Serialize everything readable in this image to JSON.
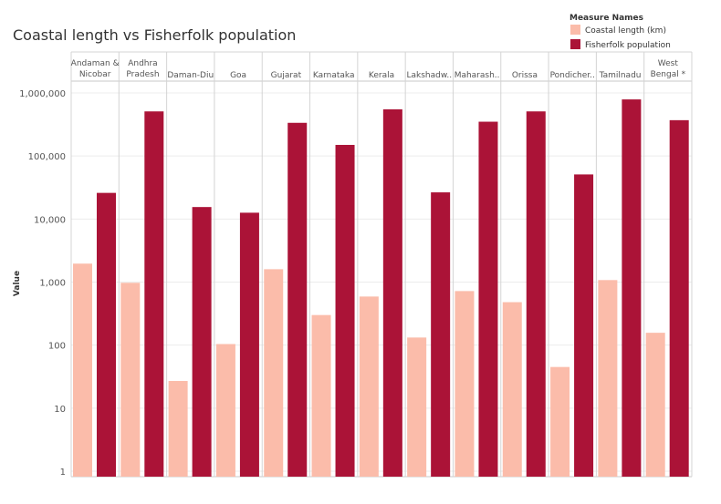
{
  "chart_data": {
    "type": "bar",
    "title": "Coastal length vs Fisherfolk population",
    "ylabel": "Value",
    "yscale": "log",
    "ylim": [
      1,
      1000000
    ],
    "yticks": [
      1,
      10,
      100,
      1000,
      10000,
      100000,
      1000000
    ],
    "ytick_labels": [
      "1",
      "10",
      "100",
      "1,000",
      "10,000",
      "100,000",
      "1,000,000"
    ],
    "grid": true,
    "legend": {
      "title": "Measure Names",
      "placement": "top-right"
    },
    "categories": [
      [
        "Andaman &",
        "Nicobar"
      ],
      [
        "Andhra",
        "Pradesh"
      ],
      [
        "Daman-Diu"
      ],
      [
        "Goa"
      ],
      [
        "Gujarat"
      ],
      [
        "Karnataka"
      ],
      [
        "Kerala"
      ],
      [
        "Lakshadw.."
      ],
      [
        "Maharash.."
      ],
      [
        "Orissa"
      ],
      [
        "Pondicher.."
      ],
      [
        "Tamilnadu"
      ],
      [
        "West",
        "Bengal *"
      ]
    ],
    "series": [
      {
        "name": "Coastal length (km)",
        "color": "#fbbcaa",
        "values": [
          1962,
          974,
          27,
          104,
          1600,
          300,
          590,
          132,
          720,
          480,
          45,
          1076,
          157
        ]
      },
      {
        "name": "Fisherfolk population",
        "color": "#ab1337",
        "values": [
          26000,
          510000,
          15500,
          12600,
          336000,
          150000,
          550000,
          26500,
          350000,
          510000,
          51000,
          790000,
          370000
        ]
      }
    ]
  }
}
